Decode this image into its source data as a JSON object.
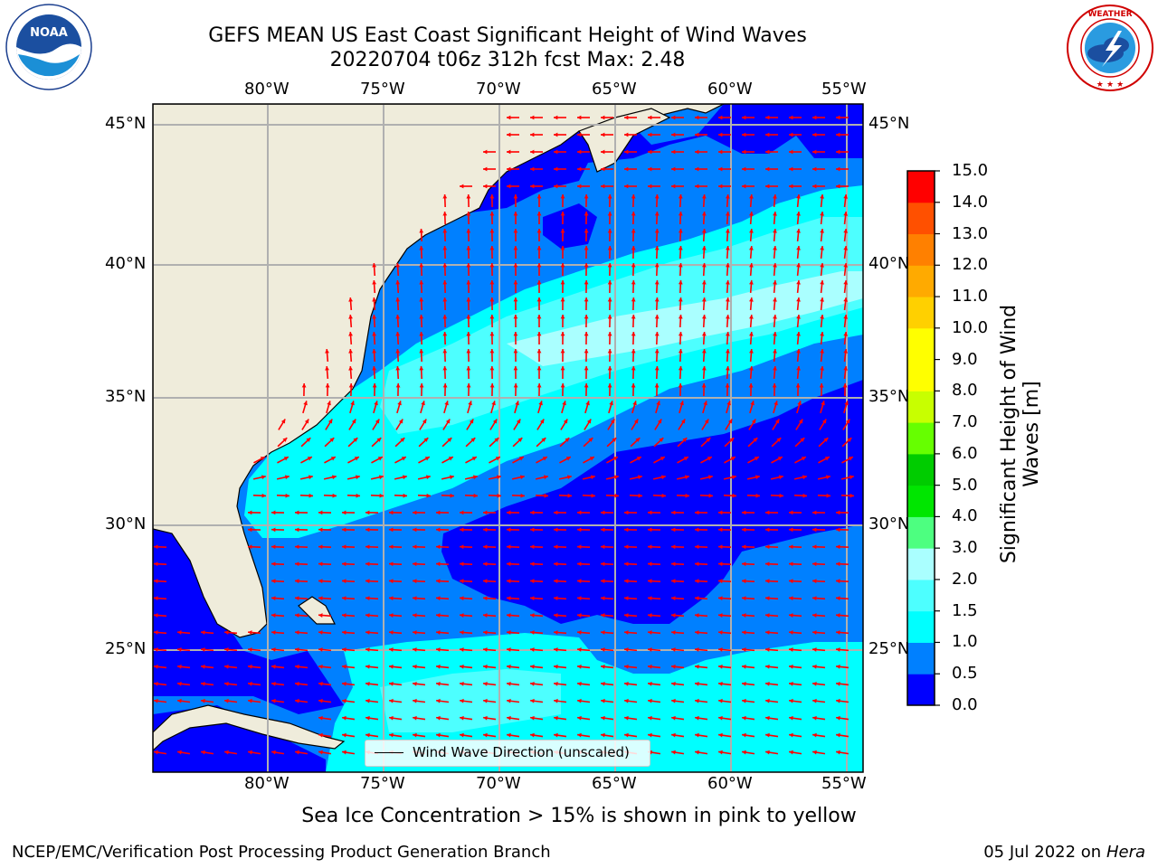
{
  "header": {
    "title_line1": "GEFS MEAN US East Coast Significant Height of Wind Waves",
    "title_line2": "20220704 t06z 312h fcst   Max: 2.48"
  },
  "map": {
    "lon_labels": [
      "80°W",
      "75°W",
      "70°W",
      "65°W",
      "60°W",
      "55°W"
    ],
    "lat_labels": [
      "45°N",
      "40°N",
      "35°N",
      "30°N",
      "25°N"
    ],
    "legend_label": "Wind Wave Direction (unscaled)",
    "colors": {
      "land": "#efecdb",
      "grid": "#b0b0b0",
      "arrow": "#ff0000"
    }
  },
  "colorbar": {
    "label": "Significant Height of Wind Waves [m]",
    "ticks": [
      "0.0",
      "0.5",
      "1.0",
      "1.5",
      "2.0",
      "3.0",
      "4.0",
      "5.0",
      "6.0",
      "7.0",
      "8.0",
      "9.0",
      "10.0",
      "11.0",
      "12.0",
      "13.0",
      "14.0",
      "15.0"
    ],
    "colors": [
      "#0000ff",
      "#0080ff",
      "#00ffff",
      "#4dffff",
      "#aaffff",
      "#4dff80",
      "#00e600",
      "#00cc00",
      "#66ff00",
      "#c8ff00",
      "#ffff00",
      "#ffff00",
      "#ffd000",
      "#ffaa00",
      "#ff8000",
      "#ff5000",
      "#ff0000"
    ]
  },
  "subtitle": "Sea Ice Concentration > 15% is shown in pink to yellow",
  "footer": {
    "left": "NCEP/EMC/Verification Post Processing Product Generation Branch",
    "right_date": "05 Jul 2022 on",
    "right_host": "Hera"
  },
  "logos": {
    "left": "noaa-logo",
    "right": "national-weather-service-logo",
    "left_text": "NOAA",
    "left_ring_text": "NATIONAL OCEANIC AND ATMOSPHERIC ADMINISTRATION · U.S. DEPARTMENT OF COMMERCE",
    "right_ring_text": "NATIONAL WEATHER SERVICE"
  }
}
